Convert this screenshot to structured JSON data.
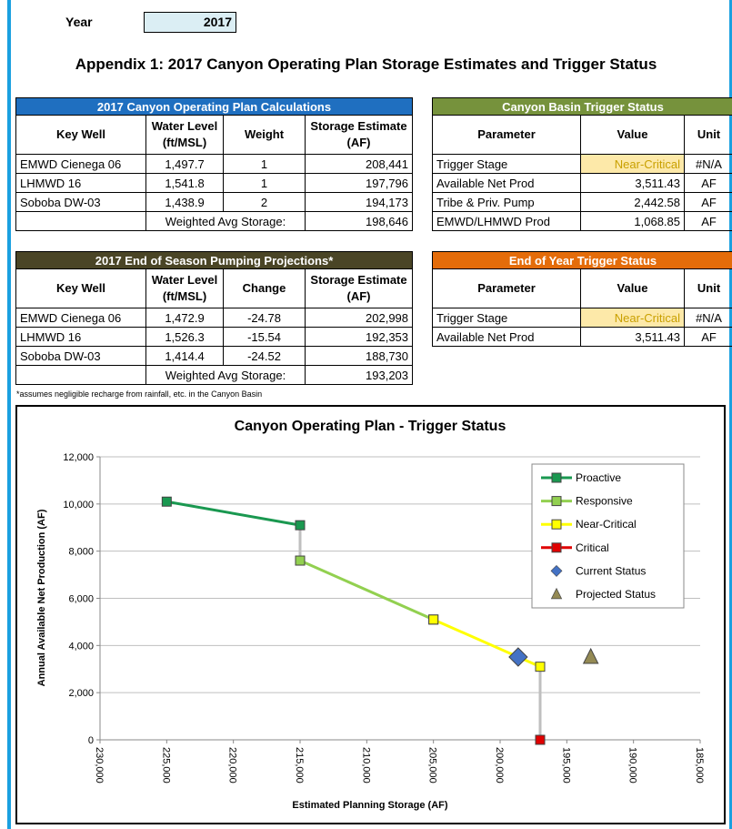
{
  "header": {
    "year_label": "Year",
    "year": "2017",
    "title": "Appendix 1: 2017 Canyon Operating Plan Storage Estimates and Trigger Status"
  },
  "table1": {
    "title": "2017 Canyon Operating Plan Calculations",
    "headers": [
      "Key Well",
      "Water Level (ft/MSL)",
      "Weight",
      "Storage Estimate (AF)"
    ],
    "rows": [
      [
        "EMWD Cienega 06",
        "1,497.7",
        "1",
        "208,441"
      ],
      [
        "LHMWD 16",
        "1,541.8",
        "1",
        "197,796"
      ],
      [
        "Soboba DW-03",
        "1,438.9",
        "2",
        "194,173"
      ]
    ],
    "summary": {
      "label": "Weighted Avg Storage:",
      "value": "198,646"
    }
  },
  "table2": {
    "title": "Canyon Basin Trigger Status",
    "headers": [
      "Parameter",
      "Value",
      "Unit"
    ],
    "rows": [
      [
        "Trigger Stage",
        "Near-Critical",
        "#N/A"
      ],
      [
        "Available Net Prod",
        "3,511.43",
        "AF"
      ],
      [
        "Tribe & Priv. Pump",
        "2,442.58",
        "AF"
      ],
      [
        "EMWD/LHMWD Prod",
        "1,068.85",
        "AF"
      ]
    ]
  },
  "table3": {
    "title": "2017 End of Season Pumping Projections*",
    "headers": [
      "Key Well",
      "Water Level (ft/MSL)",
      "Change",
      "Storage Estimate (AF)"
    ],
    "rows": [
      [
        "EMWD Cienega 06",
        "1,472.9",
        "-24.78",
        "202,998"
      ],
      [
        "LHMWD 16",
        "1,526.3",
        "-15.54",
        "192,353"
      ],
      [
        "Soboba DW-03",
        "1,414.4",
        "-24.52",
        "188,730"
      ]
    ],
    "summary": {
      "label": "Weighted Avg Storage:",
      "value": "193,203"
    },
    "footnote": "*assumes negligible recharge from rainfall, etc. in the Canyon Basin"
  },
  "table4": {
    "title": "End of Year Trigger Status",
    "headers": [
      "Parameter",
      "Value",
      "Unit"
    ],
    "rows": [
      [
        "Trigger Stage",
        "Near-Critical",
        "#N/A"
      ],
      [
        "Available Net Prod",
        "3,511.43",
        "AF"
      ]
    ]
  },
  "chart_data": {
    "type": "scatter",
    "title": "Canyon Operating Plan - Trigger Status",
    "x_label": "Estimated Planning Storage (AF)",
    "y_label": "Annual Available Net Production (AF)",
    "xlim": [
      230000,
      185000
    ],
    "xticks": [
      {
        "value": 230000,
        "label": "230,000"
      },
      {
        "value": 225000,
        "label": "225,000"
      },
      {
        "value": 220000,
        "label": "220,000"
      },
      {
        "value": 215000,
        "label": "215,000"
      },
      {
        "value": 210000,
        "label": "210,000"
      },
      {
        "value": 205000,
        "label": "205,000"
      },
      {
        "value": 200000,
        "label": "200,000"
      },
      {
        "value": 195000,
        "label": "195,000"
      },
      {
        "value": 190000,
        "label": "190,000"
      },
      {
        "value": 185000,
        "label": "185,000"
      }
    ],
    "ylim": [
      0,
      12000
    ],
    "yticks": [
      0,
      {
        "value": 2000,
        "label": "2,000"
      },
      {
        "value": 4000,
        "label": "4,000"
      },
      {
        "value": 6000,
        "label": "6,000"
      },
      {
        "value": 8000,
        "label": "8,000"
      },
      {
        "value": 10000,
        "label": "10,000"
      },
      {
        "value": 12000,
        "label": "12,000"
      }
    ],
    "grid": true,
    "legend": "upper right",
    "series": [
      {
        "name": "Proactive",
        "color": "#1a9850",
        "marker": "square",
        "line": true,
        "x": [
          225000,
          215000
        ],
        "values": [
          10100,
          9100
        ]
      },
      {
        "name": "Responsive",
        "color": "#92d050",
        "marker": "square",
        "line": true,
        "x": [
          215000,
          205000
        ],
        "values": [
          7600,
          5100
        ]
      },
      {
        "name": "Near-Critical",
        "color": "#ffff00",
        "marker": "square",
        "line": true,
        "x": [
          205000,
          197000
        ],
        "values": [
          5100,
          3100
        ]
      },
      {
        "name": "Critical",
        "color": "#e00000",
        "marker": "square",
        "line": true,
        "x": [
          197000
        ],
        "values": [
          0
        ]
      },
      {
        "name": "Current Status",
        "color": "#4472c4",
        "marker": "diamond",
        "line": false,
        "x": [
          198646
        ],
        "values": [
          3511
        ]
      },
      {
        "name": "Projected Status",
        "color": "#948a54",
        "marker": "triangle",
        "line": false,
        "x": [
          193203
        ],
        "values": [
          3511
        ]
      }
    ]
  }
}
